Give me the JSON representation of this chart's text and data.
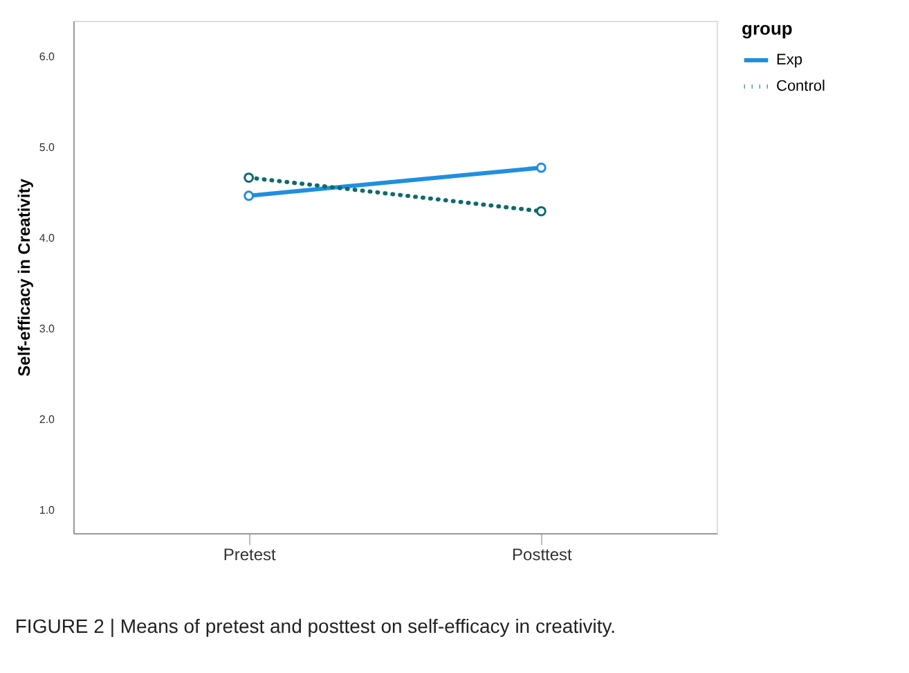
{
  "chart_data": {
    "type": "line",
    "ylabel": "Self-efficacy in Creativity",
    "legend_title": "group",
    "categories": [
      "Pretest",
      "Posttest"
    ],
    "series": [
      {
        "name": "Exp",
        "color": "#1f8fe0",
        "values": [
          4.47,
          4.78
        ],
        "line_style": "solid"
      },
      {
        "name": "Control",
        "color": "#0e6b6b",
        "values": [
          4.67,
          4.3
        ],
        "line_style": "dotted"
      }
    ],
    "ylim": [
      0.75,
      6.4
    ],
    "yticks": [
      {
        "value": 1,
        "label": "1.0"
      },
      {
        "value": 2,
        "label": "2.0"
      },
      {
        "value": 3,
        "label": "3.0"
      },
      {
        "value": 4,
        "label": "4.0"
      },
      {
        "value": 5,
        "label": "5.0"
      },
      {
        "value": 6,
        "label": "6.0"
      }
    ],
    "marker": "circle",
    "legend": "right",
    "annotations": [
      "FIGURE 2 | Means of pretest and posttest on self-efficacy in creativity."
    ]
  }
}
